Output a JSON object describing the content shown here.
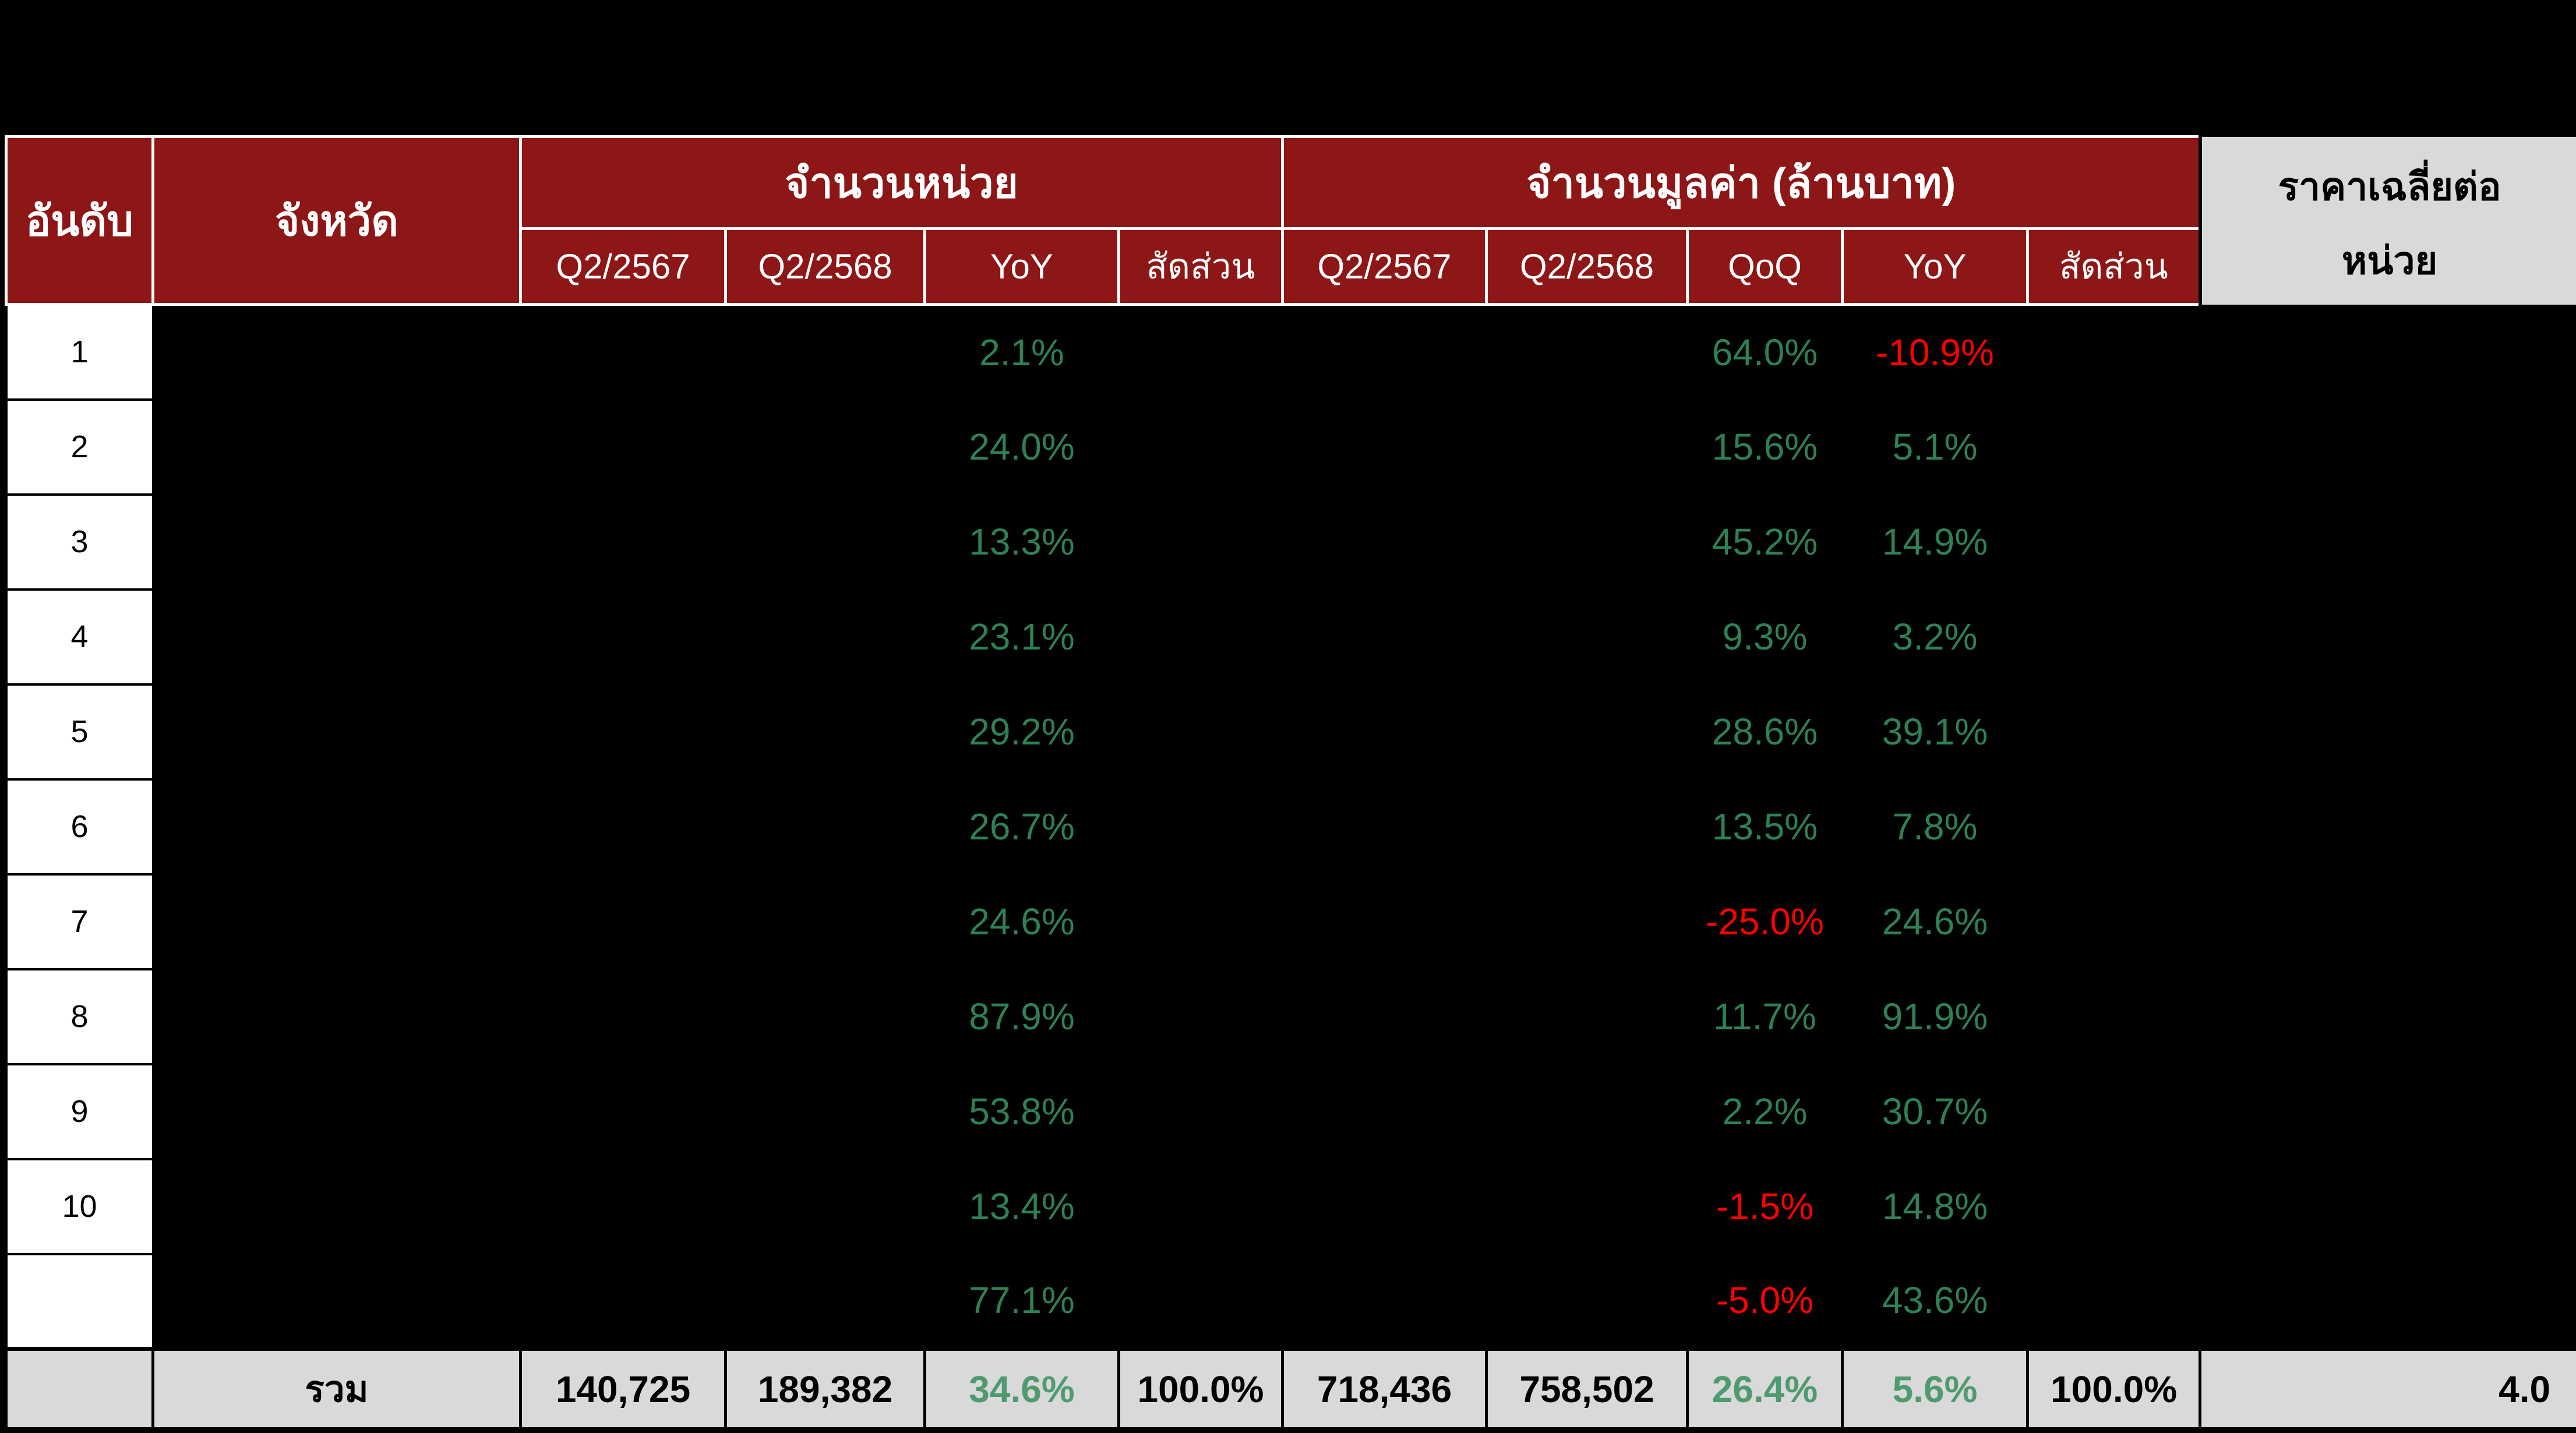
{
  "header": {
    "rank": "อันดับ",
    "province": "จังหวัด",
    "units_group": "จำนวนหน่วย",
    "value_group": "จำนวนมูลค่า (ล้านบาท)",
    "avg_price_line1": "ราคาเฉลี่ยต่อ",
    "avg_price_line2": "หน่วย",
    "sub": [
      "Q2/2567",
      "Q2/2568",
      "YoY",
      "สัดส่วน",
      "Q2/2567",
      "Q2/2568",
      "QoQ",
      "YoY",
      "สัดส่วน"
    ]
  },
  "rows": [
    {
      "rank": "1",
      "unit_yoy": "2.1%",
      "value_qoq": "64.0%",
      "value_yoy": "-10.9%"
    },
    {
      "rank": "2",
      "unit_yoy": "24.0%",
      "value_qoq": "15.6%",
      "value_yoy": "5.1%"
    },
    {
      "rank": "3",
      "unit_yoy": "13.3%",
      "value_qoq": "45.2%",
      "value_yoy": "14.9%"
    },
    {
      "rank": "4",
      "unit_yoy": "23.1%",
      "value_qoq": "9.3%",
      "value_yoy": "3.2%"
    },
    {
      "rank": "5",
      "unit_yoy": "29.2%",
      "value_qoq": "28.6%",
      "value_yoy": "39.1%"
    },
    {
      "rank": "6",
      "unit_yoy": "26.7%",
      "value_qoq": "13.5%",
      "value_yoy": "7.8%"
    },
    {
      "rank": "7",
      "unit_yoy": "24.6%",
      "value_qoq": "-25.0%",
      "value_yoy": "24.6%"
    },
    {
      "rank": "8",
      "unit_yoy": "87.9%",
      "value_qoq": "11.7%",
      "value_yoy": "91.9%"
    },
    {
      "rank": "9",
      "unit_yoy": "53.8%",
      "value_qoq": "2.2%",
      "value_yoy": "30.7%"
    },
    {
      "rank": "10",
      "unit_yoy": "13.4%",
      "value_qoq": "-1.5%",
      "value_yoy": "14.8%"
    },
    {
      "rank": "",
      "unit_yoy": "77.1%",
      "value_qoq": "-5.0%",
      "value_yoy": "43.6%"
    }
  ],
  "total": {
    "label": "รวม",
    "units_q2_2567": "140,725",
    "units_q2_2568": "189,382",
    "units_yoy": "34.6%",
    "units_share": "100.0%",
    "value_q2_2567": "718,436",
    "value_q2_2568": "758,502",
    "value_qoq": "26.4%",
    "value_yoy": "5.6%",
    "value_share": "100.0%",
    "avg_price": "4.0"
  },
  "colors": {
    "header_bg": "#8D1616",
    "header_text": "#FFFFFF",
    "positive_green": "#2E8155",
    "negative_red": "#FF0000",
    "total_green": "#4F9B6F",
    "total_bg": "#D9D9D9",
    "avg_header_bg": "#D9D9D9",
    "body_bg": "#000000"
  },
  "chart_data": {
    "type": "table",
    "title": "",
    "columns": [
      "อันดับ",
      "จังหวัด",
      "จำนวนหน่วย Q2/2567",
      "จำนวนหน่วย Q2/2568",
      "จำนวนหน่วย YoY",
      "จำนวนหน่วย สัดส่วน",
      "จำนวนมูลค่า (ล้านบาท) Q2/2567",
      "จำนวนมูลค่า (ล้านบาท) Q2/2568",
      "จำนวนมูลค่า QoQ",
      "จำนวนมูลค่า YoY",
      "จำนวนมูลค่า สัดส่วน",
      "ราคาเฉลี่ยต่อหน่วย"
    ],
    "rows": [
      [
        "1",
        "",
        "",
        "",
        "2.1%",
        "",
        "",
        "",
        "64.0%",
        "-10.9%",
        "",
        ""
      ],
      [
        "2",
        "",
        "",
        "",
        "24.0%",
        "",
        "",
        "",
        "15.6%",
        "5.1%",
        "",
        ""
      ],
      [
        "3",
        "",
        "",
        "",
        "13.3%",
        "",
        "",
        "",
        "45.2%",
        "14.9%",
        "",
        ""
      ],
      [
        "4",
        "",
        "",
        "",
        "23.1%",
        "",
        "",
        "",
        "9.3%",
        "3.2%",
        "",
        ""
      ],
      [
        "5",
        "",
        "",
        "",
        "29.2%",
        "",
        "",
        "",
        "28.6%",
        "39.1%",
        "",
        ""
      ],
      [
        "6",
        "",
        "",
        "",
        "26.7%",
        "",
        "",
        "",
        "13.5%",
        "7.8%",
        "",
        ""
      ],
      [
        "7",
        "",
        "",
        "",
        "24.6%",
        "",
        "",
        "",
        "-25.0%",
        "24.6%",
        "",
        ""
      ],
      [
        "8",
        "",
        "",
        "",
        "87.9%",
        "",
        "",
        "",
        "11.7%",
        "91.9%",
        "",
        ""
      ],
      [
        "9",
        "",
        "",
        "",
        "53.8%",
        "",
        "",
        "",
        "2.2%",
        "30.7%",
        "",
        ""
      ],
      [
        "10",
        "",
        "",
        "",
        "13.4%",
        "",
        "",
        "",
        "-1.5%",
        "14.8%",
        "",
        ""
      ],
      [
        "",
        "",
        "",
        "",
        "77.1%",
        "",
        "",
        "",
        "-5.0%",
        "43.6%",
        "",
        ""
      ]
    ],
    "total_row": [
      "",
      "รวม",
      "140,725",
      "189,382",
      "34.6%",
      "100.0%",
      "718,436",
      "758,502",
      "26.4%",
      "5.6%",
      "100.0%",
      "4.0"
    ],
    "notes": "Body cells other than rank and percentage-change columns are blacked out in the source image. Negative values shown in red, positive in green."
  }
}
